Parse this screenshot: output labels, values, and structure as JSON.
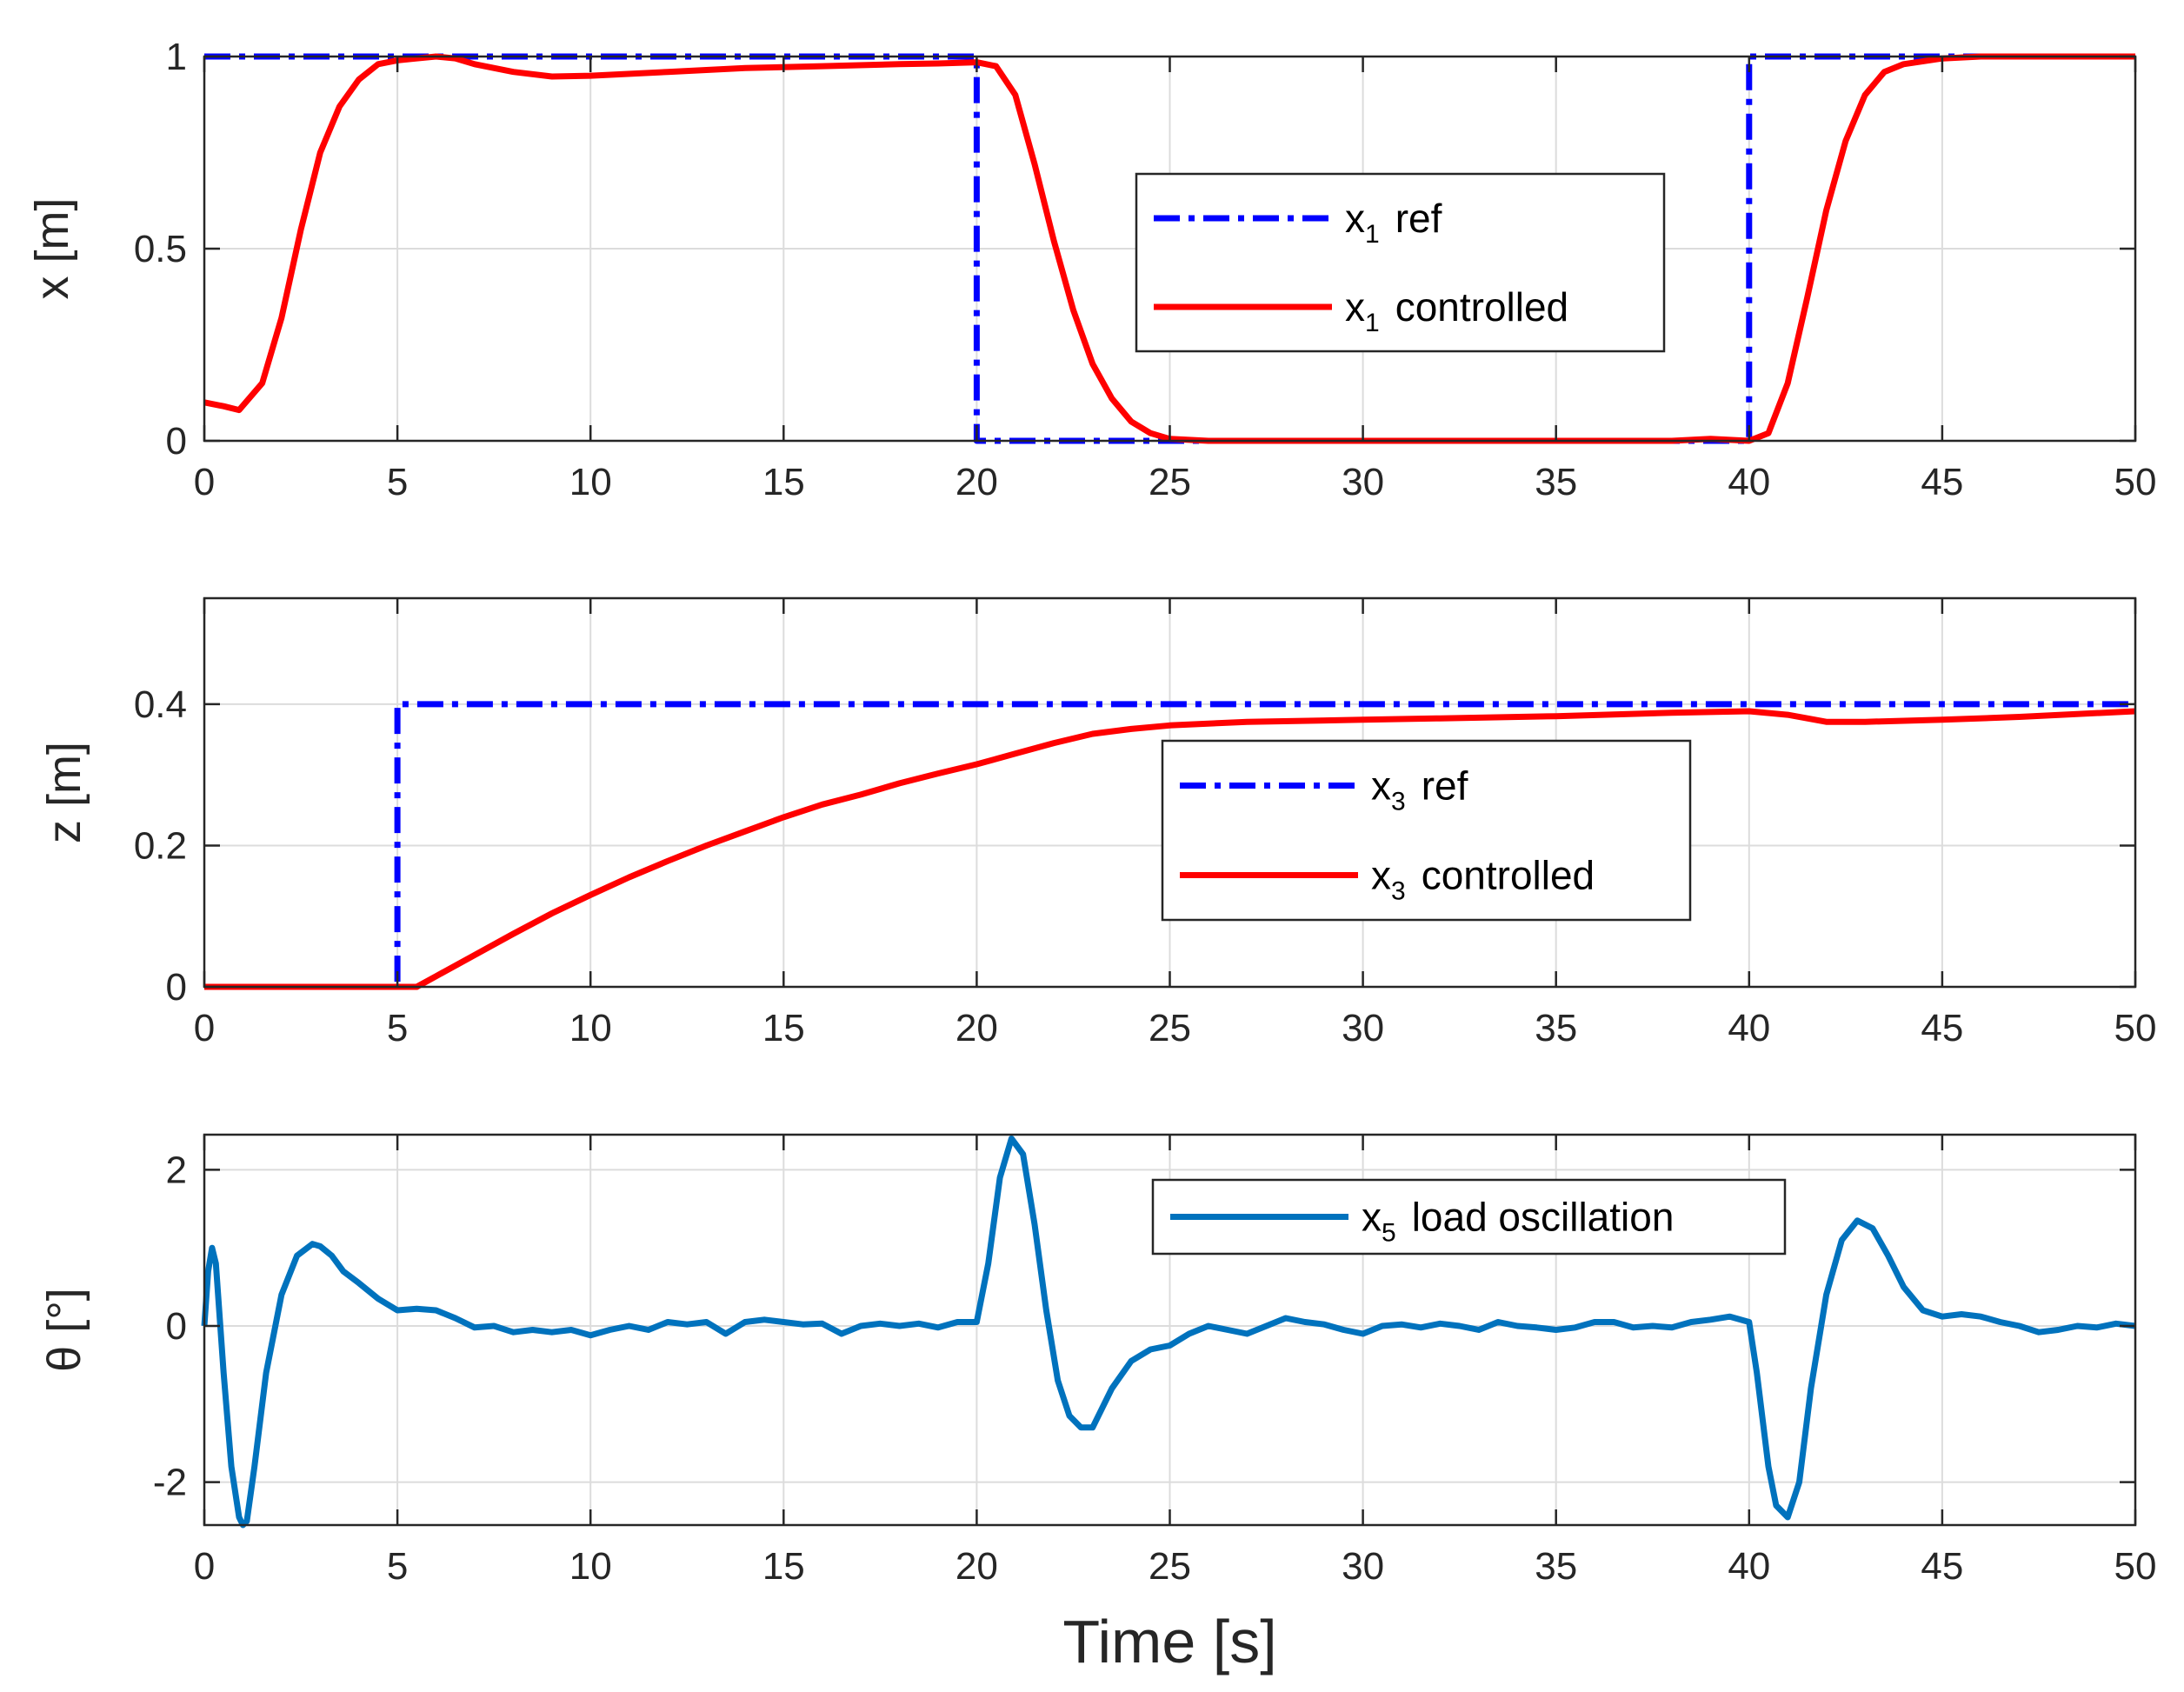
{
  "chart_data": [
    {
      "type": "line",
      "ylabel": "x  [m]",
      "xlim": [
        0,
        50
      ],
      "ylim": [
        0,
        1
      ],
      "xticks": [
        0,
        5,
        10,
        15,
        20,
        25,
        30,
        35,
        40,
        45,
        50
      ],
      "yticks": [
        0,
        0.5,
        1
      ],
      "ytick_labels": [
        "0",
        "0.5",
        "1"
      ],
      "grid": true,
      "legend_position": "center-right",
      "series": [
        {
          "name": "x1 ref",
          "label_main": "x",
          "label_sub": "1",
          "label_rest": "ref",
          "color": "#0000ff",
          "style": "dash-dot",
          "x": [
            0,
            20,
            20,
            40,
            40,
            50
          ],
          "y": [
            1,
            1,
            0,
            0,
            1,
            1
          ]
        },
        {
          "name": "x1 controlled",
          "label_main": "x",
          "label_sub": "1",
          "label_rest": "controlled",
          "color": "#ff0000",
          "style": "solid",
          "x": [
            0,
            0.5,
            0.9,
            1.5,
            2,
            2.5,
            3,
            3.5,
            4,
            4.5,
            5,
            5.5,
            6,
            6.5,
            7,
            8,
            9,
            10,
            12,
            14,
            16,
            18,
            19,
            20,
            20.5,
            21,
            21.5,
            22,
            22.5,
            23,
            23.5,
            24,
            24.5,
            25,
            26,
            27,
            30,
            35,
            38,
            39,
            40,
            40.5,
            41,
            41.5,
            42,
            42.5,
            43,
            43.5,
            44,
            45,
            46,
            47,
            48,
            50
          ],
          "y": [
            0.1,
            0.09,
            0.08,
            0.15,
            0.32,
            0.55,
            0.75,
            0.87,
            0.94,
            0.98,
            0.99,
            0.995,
            1.0,
            0.995,
            0.98,
            0.96,
            0.948,
            0.95,
            0.96,
            0.97,
            0.975,
            0.98,
            0.982,
            0.985,
            0.975,
            0.9,
            0.72,
            0.52,
            0.34,
            0.2,
            0.11,
            0.05,
            0.02,
            0.005,
            -0.005,
            -0.01,
            -0.01,
            -0.005,
            0.0,
            0.005,
            0.0,
            0.02,
            0.15,
            0.37,
            0.6,
            0.78,
            0.9,
            0.96,
            0.98,
            0.995,
            1.0,
            1.0,
            1.0,
            1.0
          ]
        }
      ]
    },
    {
      "type": "line",
      "ylabel": "z [m]",
      "xlim": [
        0,
        50
      ],
      "ylim": [
        0,
        0.55
      ],
      "xticks": [
        0,
        5,
        10,
        15,
        20,
        25,
        30,
        35,
        40,
        45,
        50
      ],
      "yticks": [
        0,
        0.2,
        0.4
      ],
      "ytick_labels": [
        "0",
        "0.2",
        "0.4"
      ],
      "grid": true,
      "legend_position": "center-right",
      "series": [
        {
          "name": "x3 ref",
          "label_main": "x",
          "label_sub": "3",
          "label_rest": "ref",
          "color": "#0000ff",
          "style": "dash-dot",
          "x": [
            0,
            5,
            5,
            50
          ],
          "y": [
            0,
            0,
            0.4,
            0.4
          ]
        },
        {
          "name": "x3 controlled",
          "label_main": "x",
          "label_sub": "3",
          "label_rest": "controlled",
          "color": "#ff0000",
          "style": "solid",
          "x": [
            0,
            1,
            5.3,
            5.5,
            6,
            7,
            8,
            9,
            10,
            11,
            12,
            13,
            14,
            15,
            16,
            17,
            18,
            19,
            20,
            21,
            22,
            23,
            24,
            25,
            27,
            30,
            32,
            35,
            38,
            40,
            41,
            42,
            43,
            45,
            47,
            50
          ],
          "y": [
            0,
            0,
            0,
            0.0,
            0.015,
            0.045,
            0.075,
            0.104,
            0.13,
            0.155,
            0.178,
            0.2,
            0.22,
            0.24,
            0.258,
            0.272,
            0.288,
            0.302,
            0.315,
            0.33,
            0.345,
            0.358,
            0.365,
            0.37,
            0.375,
            0.378,
            0.38,
            0.383,
            0.388,
            0.39,
            0.385,
            0.375,
            0.375,
            0.378,
            0.382,
            0.39
          ]
        }
      ]
    },
    {
      "type": "line",
      "ylabel": "θ [°]",
      "xlabel": "Time [s]",
      "xlim": [
        0,
        50
      ],
      "ylim": [
        -2.55,
        2.45
      ],
      "xticks": [
        0,
        5,
        10,
        15,
        20,
        25,
        30,
        35,
        40,
        45,
        50
      ],
      "yticks": [
        -2,
        0,
        2
      ],
      "ytick_labels": [
        "-2",
        "0",
        "2"
      ],
      "grid": true,
      "legend_position": "top-right",
      "series": [
        {
          "name": "x5 load oscillation",
          "label_main": "x",
          "label_sub": "5",
          "label_rest": "load oscillation",
          "color": "#0072bd",
          "style": "solid",
          "x": [
            0,
            0.1,
            0.2,
            0.3,
            0.5,
            0.7,
            0.9,
            1.0,
            1.1,
            1.3,
            1.6,
            2.0,
            2.4,
            2.8,
            3.0,
            3.3,
            3.6,
            4.0,
            4.5,
            5.0,
            5.5,
            6.0,
            6.5,
            7.0,
            7.5,
            8.0,
            8.5,
            9.0,
            9.5,
            10.0,
            10.5,
            11.0,
            11.5,
            12.0,
            12.5,
            13.0,
            13.5,
            14.0,
            14.5,
            15.0,
            15.5,
            16.0,
            16.5,
            17.0,
            17.5,
            18.0,
            18.5,
            19.0,
            19.5,
            20.0,
            20.3,
            20.6,
            20.9,
            21.2,
            21.5,
            21.8,
            22.1,
            22.4,
            22.7,
            23.0,
            23.5,
            24.0,
            24.5,
            25.0,
            25.5,
            26.0,
            26.5,
            27.0,
            27.5,
            28.0,
            28.5,
            29.0,
            29.5,
            30.0,
            30.5,
            31.0,
            31.5,
            32.0,
            32.5,
            33.0,
            33.5,
            34.0,
            34.5,
            35.0,
            35.5,
            36.0,
            36.5,
            37.0,
            37.5,
            38.0,
            38.5,
            39.0,
            39.5,
            40.0,
            40.2,
            40.5,
            40.7,
            41.0,
            41.3,
            41.6,
            42.0,
            42.4,
            42.8,
            43.2,
            43.6,
            44.0,
            44.5,
            45.0,
            45.5,
            46.0,
            46.5,
            47.0,
            47.5,
            48.0,
            48.5,
            49.0,
            49.5,
            50.0
          ],
          "y": [
            0,
            0.7,
            1.0,
            0.8,
            -0.6,
            -1.8,
            -2.45,
            -2.55,
            -2.5,
            -1.8,
            -0.6,
            0.4,
            0.9,
            1.05,
            1.02,
            0.9,
            0.7,
            0.55,
            0.35,
            0.2,
            0.22,
            0.2,
            0.1,
            -0.02,
            0.0,
            -0.08,
            -0.05,
            -0.08,
            -0.05,
            -0.12,
            -0.05,
            0.0,
            -0.05,
            0.05,
            0.02,
            0.05,
            -0.1,
            0.05,
            0.08,
            0.05,
            0.02,
            0.03,
            -0.1,
            0.0,
            0.03,
            0.0,
            0.03,
            -0.02,
            0.05,
            0.05,
            0.8,
            1.9,
            2.4,
            2.2,
            1.3,
            0.2,
            -0.7,
            -1.15,
            -1.3,
            -1.3,
            -0.8,
            -0.45,
            -0.3,
            -0.25,
            -0.1,
            0.0,
            -0.05,
            -0.1,
            0.0,
            0.1,
            0.05,
            0.02,
            -0.05,
            -0.1,
            0.0,
            0.02,
            -0.02,
            0.03,
            0.0,
            -0.05,
            0.05,
            0.0,
            -0.02,
            -0.05,
            -0.02,
            0.05,
            0.05,
            -0.02,
            0.0,
            -0.02,
            0.05,
            0.08,
            0.12,
            0.05,
            -0.6,
            -1.8,
            -2.3,
            -2.45,
            -2.0,
            -0.8,
            0.4,
            1.1,
            1.35,
            1.25,
            0.9,
            0.5,
            0.2,
            0.12,
            0.15,
            0.12,
            0.05,
            0.0,
            -0.08,
            -0.05,
            0.0,
            -0.02,
            0.03,
            0.0
          ]
        }
      ]
    }
  ]
}
